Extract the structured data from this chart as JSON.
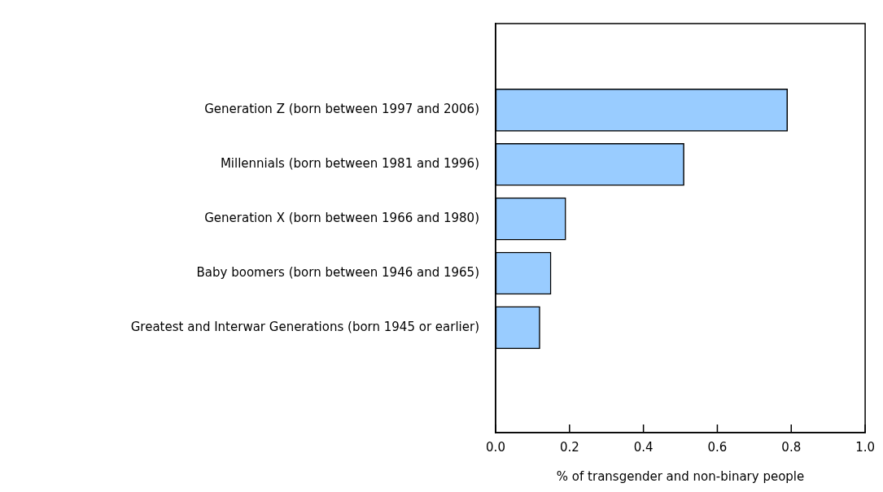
{
  "chart_data": {
    "type": "bar",
    "orientation": "horizontal",
    "categories": [
      "Generation Z (born between 1997 and 2006)",
      "Millennials (born between 1981 and 1996)",
      "Generation X (born between 1966 and 1980)",
      "Baby boomers (born between 1946 and 1965)",
      "Greatest and Interwar Generations (born 1945 or earlier)"
    ],
    "values": [
      0.79,
      0.51,
      0.19,
      0.15,
      0.12
    ],
    "color": "#99ccff",
    "xlabel": "% of transgender and non-binary people",
    "xlim": [
      0,
      1
    ],
    "xticks": [
      {
        "value": 0,
        "label": "0.0"
      },
      {
        "value": 0.2,
        "label": "0.2"
      },
      {
        "value": 0.4,
        "label": "0.4"
      },
      {
        "value": 0.6,
        "label": "0.6"
      },
      {
        "value": 0.8,
        "label": "0.8"
      },
      {
        "value": 1,
        "label": "1.0"
      }
    ],
    "grid": false,
    "legend": false
  }
}
